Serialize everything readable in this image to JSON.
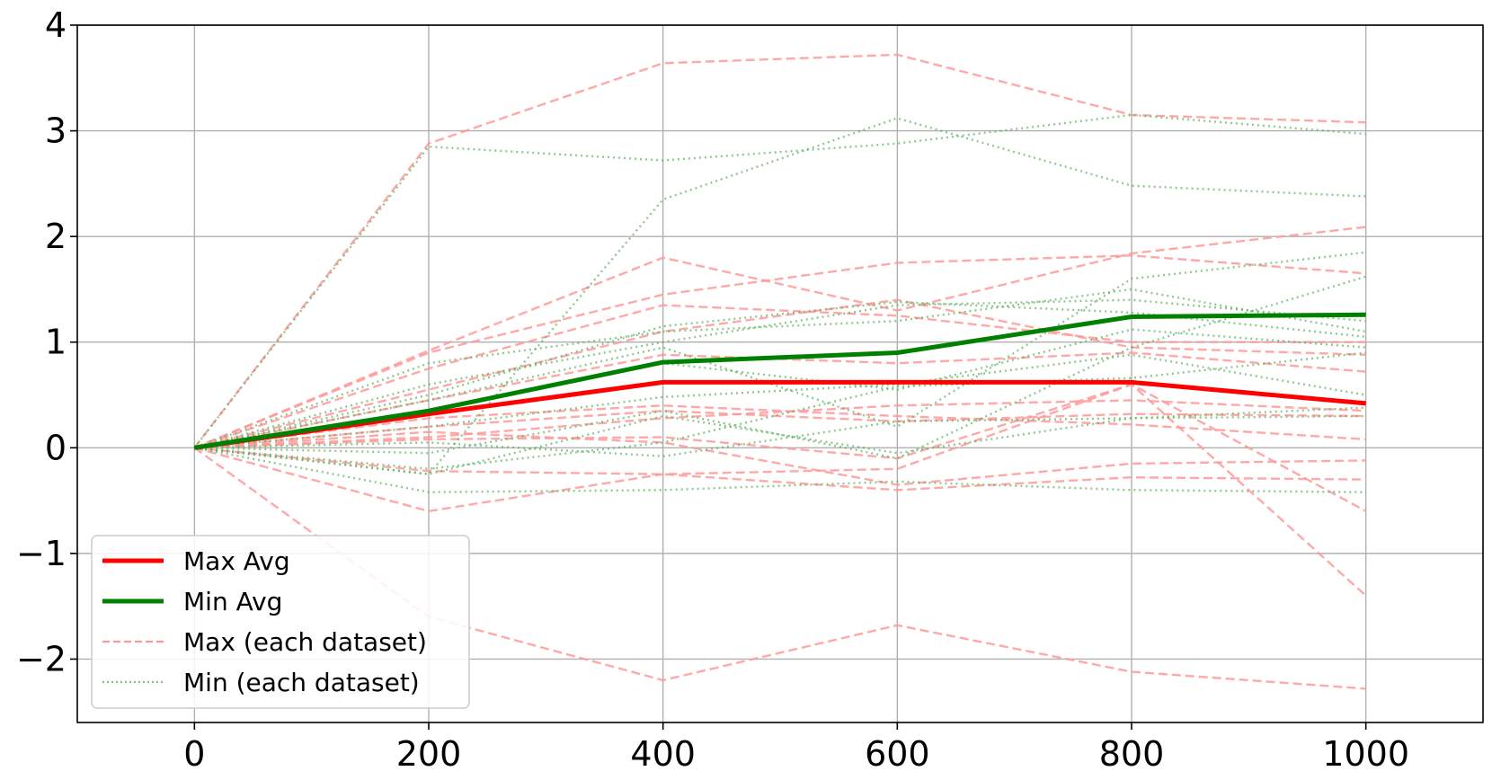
{
  "chart_data": {
    "type": "line",
    "title": "",
    "xlabel": "",
    "ylabel": "",
    "x": [
      0,
      200,
      400,
      600,
      800,
      1000
    ],
    "xlim": [
      -100,
      1100
    ],
    "ylim": [
      -2.6,
      4.0
    ],
    "xticks": [
      "0",
      "200",
      "400",
      "600",
      "800",
      "1000"
    ],
    "yticks": [
      {
        "value": -2,
        "label": "−2"
      },
      {
        "value": -1,
        "label": "−1"
      },
      {
        "value": 0,
        "label": "0"
      },
      {
        "value": 1,
        "label": "1"
      },
      {
        "value": 2,
        "label": "2"
      },
      {
        "value": 3,
        "label": "3"
      },
      {
        "value": 4,
        "label": "4"
      }
    ],
    "grid": true,
    "legend_position": "lower-left",
    "legend": [
      {
        "label": "Max Avg",
        "color": "#ff0000",
        "style": "solid"
      },
      {
        "label": "Min Avg",
        "color": "#008000",
        "style": "solid"
      },
      {
        "label": "Max (each dataset)",
        "color": "#ff9999",
        "style": "dashed"
      },
      {
        "label": "Min (each dataset)",
        "color": "#80c080",
        "style": "dotted"
      }
    ],
    "avg_series": [
      {
        "name": "Max Avg",
        "color": "#ff0000",
        "values": [
          0,
          0.32,
          0.62,
          0.62,
          0.62,
          0.42
        ]
      },
      {
        "name": "Min Avg",
        "color": "#008000",
        "values": [
          0,
          0.35,
          0.81,
          0.9,
          1.24,
          1.26
        ]
      }
    ],
    "max_series": [
      [
        0,
        2.88,
        3.64,
        3.72,
        3.15,
        3.08
      ],
      [
        0,
        0.92,
        1.8,
        1.3,
        1.84,
        2.09
      ],
      [
        0,
        0.9,
        1.45,
        1.75,
        1.82,
        1.65
      ],
      [
        0,
        0.75,
        1.35,
        1.25,
        1.0,
        1.0
      ],
      [
        0,
        0.55,
        1.1,
        1.4,
        0.95,
        0.88
      ],
      [
        0,
        0.45,
        0.88,
        0.8,
        0.9,
        0.72
      ],
      [
        0,
        0.28,
        0.4,
        0.3,
        0.22,
        0.08
      ],
      [
        0,
        0.2,
        0.35,
        0.25,
        0.32,
        0.3
      ],
      [
        0,
        0.08,
        0.1,
        -0.1,
        0.6,
        -1.4
      ],
      [
        0,
        -0.22,
        -0.25,
        -0.4,
        -0.28,
        -0.3
      ],
      [
        0,
        -0.6,
        -0.25,
        -0.2,
        0.6,
        -0.6
      ],
      [
        0,
        0.15,
        0.05,
        -0.35,
        -0.15,
        -0.12
      ],
      [
        0,
        0.1,
        0.28,
        0.4,
        0.45,
        0.35
      ],
      [
        0,
        -1.6,
        -2.2,
        -1.68,
        -2.12,
        -2.28
      ]
    ],
    "min_series": [
      [
        0,
        2.85,
        2.72,
        2.88,
        3.15,
        2.97
      ],
      [
        0,
        -0.25,
        2.35,
        3.12,
        2.48,
        2.38
      ],
      [
        0,
        0.8,
        1.1,
        1.2,
        1.5,
        1.1
      ],
      [
        0,
        0.6,
        1.0,
        1.35,
        1.4,
        1.2
      ],
      [
        0,
        0.5,
        1.15,
        1.38,
        1.28,
        1.05
      ],
      [
        0,
        0.45,
        0.95,
        0.2,
        1.6,
        1.85
      ],
      [
        0,
        0.35,
        0.8,
        0.55,
        1.12,
        0.95
      ],
      [
        0,
        0.2,
        0.48,
        0.6,
        0.88,
        0.5
      ],
      [
        0,
        -0.25,
        0.3,
        -0.05,
        0.28,
        0.3
      ],
      [
        0,
        -0.05,
        0.35,
        -0.1,
        0.95,
        1.62
      ],
      [
        0,
        -0.42,
        -0.4,
        -0.32,
        -0.4,
        -0.42
      ],
      [
        0,
        0.05,
        -0.08,
        0.25,
        0.28,
        0.38
      ],
      [
        0,
        -0.2,
        0.05,
        0.58,
        0.66,
        0.9
      ]
    ]
  }
}
